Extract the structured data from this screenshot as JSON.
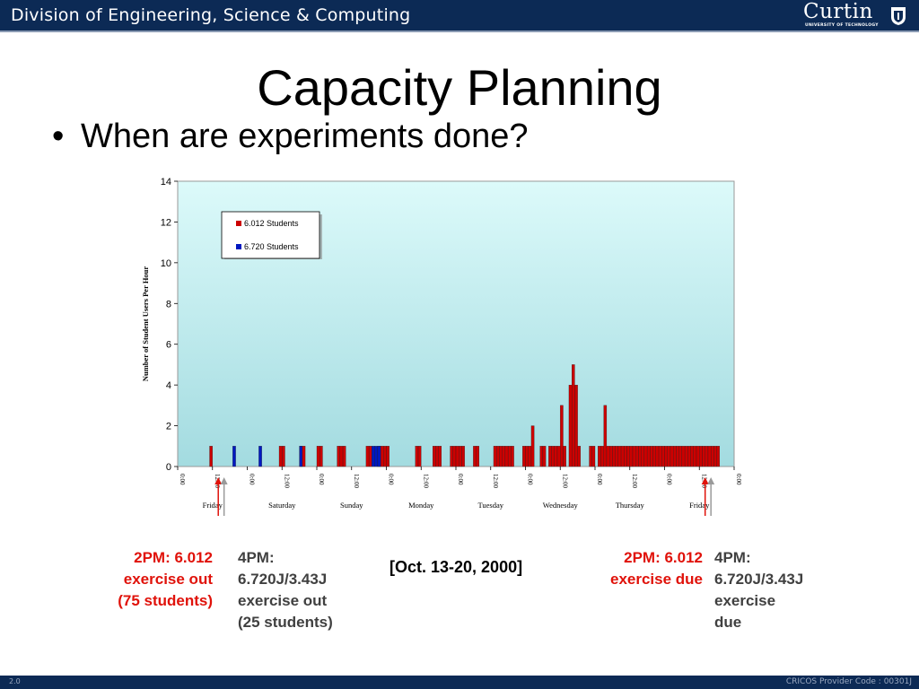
{
  "header": {
    "division": "Division of Engineering, Science & Computing",
    "logo_name": "Curtin",
    "logo_sub": "UNIVERSITY OF TECHNOLOGY"
  },
  "slide": {
    "title": "Capacity Planning",
    "bullet": "When are experiments done?",
    "bullet_marker": "•"
  },
  "chart_data": {
    "type": "bar",
    "ylabel": "Number of Student Users Per Hour",
    "ylim": [
      0,
      14
    ],
    "yticks": [
      0,
      2,
      4,
      6,
      8,
      10,
      12,
      14
    ],
    "hours": 192,
    "x_tick_labels": [
      "0:00",
      "12:00",
      "0:00",
      "12:00",
      "0:00",
      "12:00",
      "0:00",
      "12:00",
      "0:00",
      "12:00",
      "0:00",
      "12:00",
      "0:00",
      "12:00",
      "0:00",
      "12:00",
      "0:00"
    ],
    "day_labels": [
      "Friday",
      "Saturday",
      "Sunday",
      "Monday",
      "Tuesday",
      "Wednesday",
      "Thursday",
      "Friday"
    ],
    "legend": [
      "6.012 Students",
      "6.720 Students"
    ],
    "colors": {
      "s6012": "#cc0000",
      "s6720": "#0018c0",
      "plot_top": "#dcfafa",
      "plot_bottom": "#a3dbe0"
    },
    "series": [
      {
        "name": "6.012 Students",
        "points": [
          [
            11,
            1
          ],
          [
            35,
            1
          ],
          [
            36,
            1
          ],
          [
            42,
            1
          ],
          [
            43,
            1
          ],
          [
            48,
            1
          ],
          [
            49,
            1
          ],
          [
            55,
            1
          ],
          [
            56,
            1
          ],
          [
            57,
            1
          ],
          [
            65,
            1
          ],
          [
            66,
            1
          ],
          [
            69,
            1
          ],
          [
            70,
            1
          ],
          [
            71,
            1
          ],
          [
            72,
            1
          ],
          [
            82,
            1
          ],
          [
            83,
            1
          ],
          [
            88,
            1
          ],
          [
            89,
            1
          ],
          [
            90,
            1
          ],
          [
            94,
            1
          ],
          [
            95,
            1
          ],
          [
            96,
            1
          ],
          [
            97,
            1
          ],
          [
            98,
            1
          ],
          [
            102,
            1
          ],
          [
            103,
            1
          ],
          [
            109,
            1
          ],
          [
            110,
            1
          ],
          [
            111,
            1
          ],
          [
            112,
            1
          ],
          [
            113,
            1
          ],
          [
            114,
            1
          ],
          [
            115,
            1
          ],
          [
            119,
            1
          ],
          [
            120,
            1
          ],
          [
            121,
            1
          ],
          [
            122,
            2
          ],
          [
            125,
            1
          ],
          [
            126,
            1
          ],
          [
            128,
            1
          ],
          [
            129,
            1
          ],
          [
            130,
            1
          ],
          [
            131,
            1
          ],
          [
            132,
            3
          ],
          [
            133,
            1
          ],
          [
            135,
            4
          ],
          [
            136,
            5
          ],
          [
            137,
            4
          ],
          [
            138,
            1
          ],
          [
            142,
            1
          ],
          [
            143,
            1
          ],
          [
            145,
            1
          ],
          [
            146,
            1
          ],
          [
            147,
            3
          ],
          [
            148,
            1
          ],
          [
            149,
            1
          ],
          [
            150,
            1
          ],
          [
            151,
            1
          ],
          [
            152,
            1
          ],
          [
            153,
            1
          ],
          [
            154,
            1
          ],
          [
            155,
            1
          ],
          [
            156,
            1
          ],
          [
            157,
            1
          ],
          [
            158,
            1
          ],
          [
            159,
            1
          ],
          [
            160,
            1
          ],
          [
            161,
            1
          ],
          [
            162,
            1
          ],
          [
            163,
            1
          ],
          [
            164,
            1
          ],
          [
            165,
            1
          ],
          [
            166,
            1
          ],
          [
            167,
            1
          ],
          [
            168,
            1
          ],
          [
            169,
            1
          ],
          [
            170,
            1
          ],
          [
            171,
            1
          ],
          [
            172,
            1
          ],
          [
            173,
            1
          ],
          [
            174,
            1
          ],
          [
            175,
            1
          ],
          [
            176,
            1
          ],
          [
            177,
            1
          ],
          [
            178,
            1
          ],
          [
            179,
            1
          ],
          [
            180,
            1
          ],
          [
            181,
            1
          ],
          [
            182,
            1
          ],
          [
            183,
            1
          ],
          [
            184,
            1
          ],
          [
            185,
            1
          ],
          [
            186,
            1
          ]
        ]
      },
      {
        "name": "6.720 Students",
        "points": [
          [
            19,
            1
          ],
          [
            28,
            1
          ],
          [
            42,
            1
          ],
          [
            67,
            1
          ],
          [
            68,
            1
          ],
          [
            69,
            1
          ]
        ]
      }
    ]
  },
  "annotations": {
    "left_red": [
      "2PM: 6.012",
      "exercise out",
      "(75 students)"
    ],
    "left_dark": [
      "4PM:",
      "6.720J/3.43J",
      "exercise out",
      "(25 students)"
    ],
    "center": "[Oct. 13-20, 2000]",
    "right_red": [
      "2PM: 6.012",
      "exercise due"
    ],
    "right_dark": [
      "4PM:",
      "6.720J/3.43J",
      "exercise",
      "due"
    ]
  },
  "footer": {
    "left": "2.0",
    "right": "CRICOS Provider Code : 00301J"
  }
}
